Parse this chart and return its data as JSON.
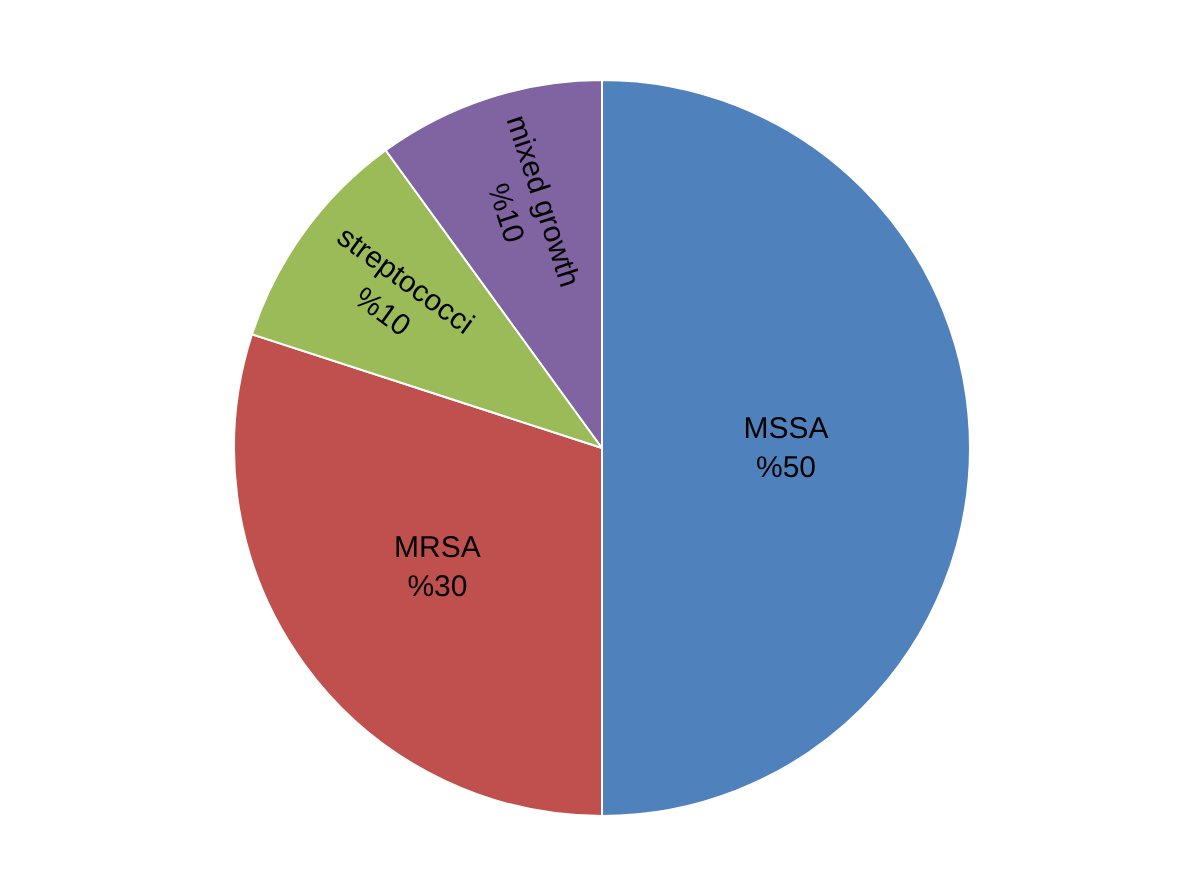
{
  "chart_data": {
    "type": "pie",
    "categories": [
      "MSSA",
      "MRSA",
      "streptococci",
      "mixed growth"
    ],
    "values": [
      50,
      30,
      10,
      10
    ],
    "value_labels": [
      "%50",
      "%30",
      "%10",
      "%10"
    ],
    "colors": [
      "#4f81bd",
      "#c0504d",
      "#9bbb59",
      "#8064a2"
    ],
    "legend": false
  }
}
